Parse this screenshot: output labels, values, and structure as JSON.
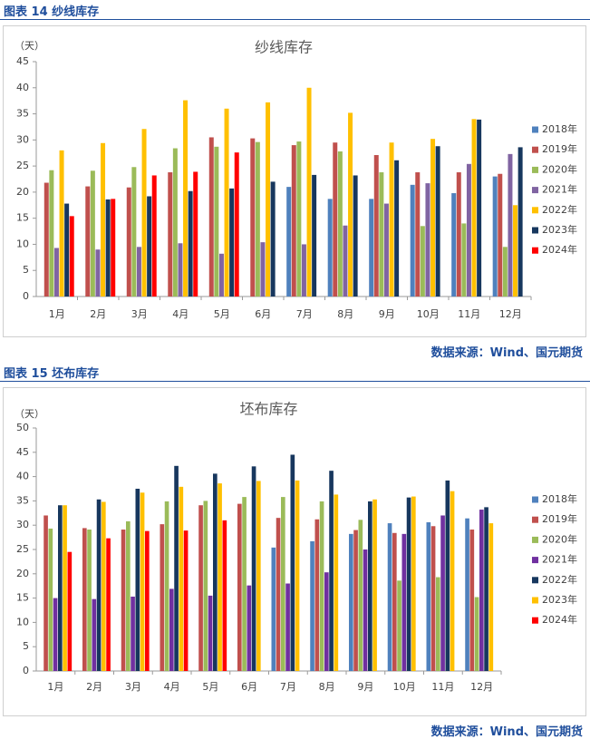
{
  "figures": [
    {
      "caption": "图表 14  纱线库存",
      "source": "数据来源：Wind、国元期货",
      "chart_data": {
        "type": "bar",
        "title": "纱线库存",
        "ylabel": "（天）",
        "xlabel": "",
        "ylim": [
          0,
          45
        ],
        "yticks": [
          0,
          5,
          10,
          15,
          20,
          25,
          30,
          35,
          40,
          45
        ],
        "grid": false,
        "legend_position": "right",
        "categories": [
          "1月",
          "2月",
          "3月",
          "4月",
          "5月",
          "6月",
          "7月",
          "8月",
          "9月",
          "10月",
          "11月",
          "12月"
        ],
        "series": [
          {
            "name": "2018年",
            "color": "#4f81bd",
            "values": [
              null,
              null,
              null,
              null,
              null,
              null,
              21,
              18.7,
              18.7,
              21.4,
              19.8,
              23
            ]
          },
          {
            "name": "2019年",
            "color": "#c0504d",
            "values": [
              21.8,
              21.1,
              20.9,
              23.8,
              30.5,
              30.3,
              29,
              29.5,
              27.1,
              23.8,
              23.8,
              23.5
            ]
          },
          {
            "name": "2020年",
            "color": "#9bbb59",
            "values": [
              24.2,
              24.1,
              24.8,
              28.4,
              28.7,
              29.6,
              29.7,
              27.8,
              23.8,
              13.5,
              14,
              9.5
            ]
          },
          {
            "name": "2021年",
            "color": "#8064a2",
            "values": [
              9.3,
              9,
              9.5,
              10.2,
              8.2,
              10.4,
              10,
              13.6,
              17.8,
              21.7,
              25.4,
              27.3
            ]
          },
          {
            "name": "2022年",
            "color": "#ffc000",
            "values": [
              28,
              29.4,
              32.1,
              37.6,
              36,
              37.2,
              40,
              35.2,
              29.5,
              30.2,
              34,
              17.5
            ]
          },
          {
            "name": "2023年",
            "color": "#17375e",
            "values": [
              17.8,
              18.6,
              19.2,
              20.2,
              20.7,
              22,
              23.3,
              23.2,
              26.1,
              28.8,
              33.9,
              28.6
            ]
          },
          {
            "name": "2024年",
            "color": "#ff0000",
            "values": [
              15.4,
              18.7,
              23.2,
              23.9,
              27.6,
              null,
              null,
              null,
              null,
              null,
              null,
              null
            ]
          }
        ]
      }
    },
    {
      "caption": "图表 15  坯布库存",
      "source": "数据来源：Wind、国元期货",
      "chart_data": {
        "type": "bar",
        "title": "坯布库存",
        "ylabel": "（天）",
        "xlabel": "",
        "ylim": [
          0,
          50
        ],
        "yticks": [
          0,
          5,
          10,
          15,
          20,
          25,
          30,
          35,
          40,
          45,
          50
        ],
        "grid": false,
        "legend_position": "right",
        "categories": [
          "1月",
          "2月",
          "3月",
          "4月",
          "5月",
          "6月",
          "7月",
          "8月",
          "9月",
          "10月",
          "11月",
          "12月"
        ],
        "series": [
          {
            "name": "2018年",
            "color": "#4f81bd",
            "values": [
              null,
              null,
              null,
              null,
              null,
              null,
              25.4,
              26.7,
              28.2,
              30.4,
              30.6,
              31.4
            ]
          },
          {
            "name": "2019年",
            "color": "#c0504d",
            "values": [
              32,
              29.4,
              29.1,
              30.2,
              34.1,
              34.4,
              31.5,
              31.2,
              29,
              28.4,
              29.8,
              29.1
            ]
          },
          {
            "name": "2020年",
            "color": "#9bbb59",
            "values": [
              29.3,
              29.1,
              30.8,
              34.9,
              35,
              35.8,
              35.8,
              34.9,
              31.1,
              18.6,
              19.3,
              15.2
            ]
          },
          {
            "name": "2021年",
            "color": "#7030a0",
            "values": [
              15,
              14.8,
              15.3,
              16.9,
              15.5,
              17.6,
              18,
              20.3,
              25,
              28.2,
              32,
              33.2
            ]
          },
          {
            "name": "2022年",
            "color": "#17375e",
            "values": [
              34.1,
              35.3,
              37.5,
              42.2,
              40.6,
              42.1,
              44.5,
              41.2,
              34.9,
              35.7,
              39.2,
              33.7
            ]
          },
          {
            "name": "2023年",
            "color": "#ffc000",
            "values": [
              34.1,
              34.8,
              36.7,
              37.9,
              38.6,
              39.1,
              39.2,
              36.3,
              35.3,
              35.9,
              37,
              30.4
            ]
          },
          {
            "name": "2024年",
            "color": "#ff0000",
            "values": [
              24.5,
              27.3,
              28.8,
              28.9,
              31,
              null,
              null,
              null,
              null,
              null,
              null,
              null
            ]
          }
        ]
      }
    }
  ]
}
